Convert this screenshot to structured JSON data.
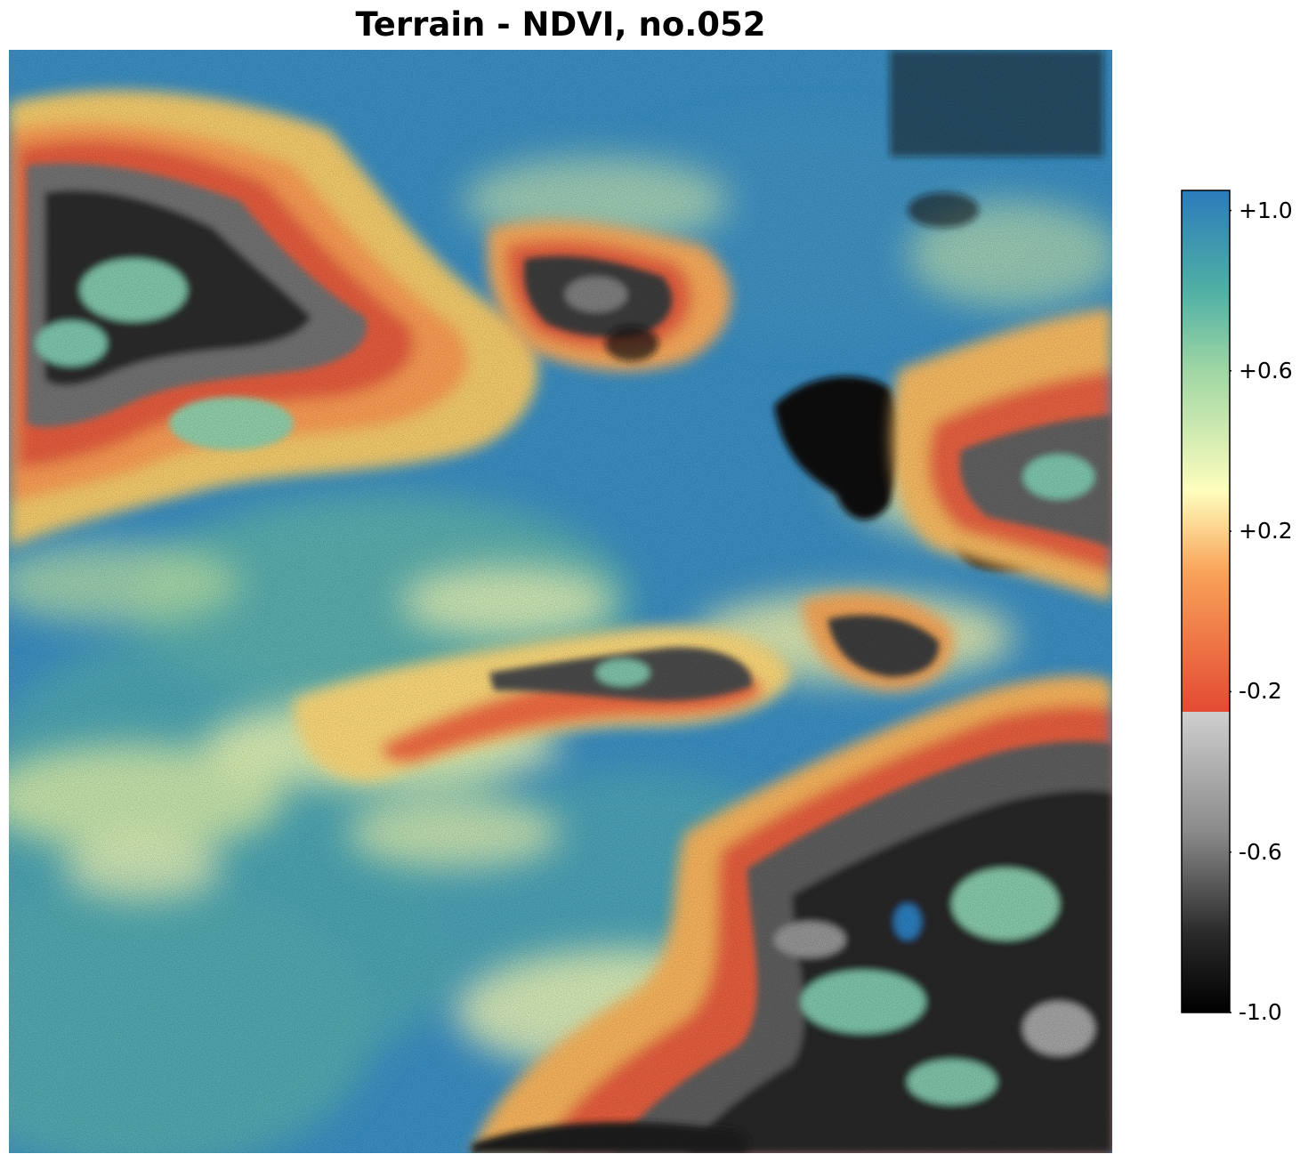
{
  "title": "Terrain - NDVI, no.052",
  "colorbar": {
    "min": -1.0,
    "max": 1.05,
    "ticks": [
      {
        "value": 1.0,
        "label": "+1.0"
      },
      {
        "value": 0.6,
        "label": "+0.6"
      },
      {
        "value": 0.2,
        "label": "+0.2"
      },
      {
        "value": -0.2,
        "label": "-0.2"
      },
      {
        "value": -0.6,
        "label": "-0.6"
      },
      {
        "value": -1.0,
        "label": "-1.0"
      }
    ],
    "colors": {
      "high": "#2b7bba",
      "teal": "#4fb0a5",
      "green": "#9fd6a4",
      "pale-yellow": "#fefebd",
      "orange": "#f9a35a",
      "red": "#e34a33",
      "light-gray": "#cfcfcf",
      "black": "#000000"
    }
  },
  "map": {
    "icon": "ndvi-raster-map"
  }
}
